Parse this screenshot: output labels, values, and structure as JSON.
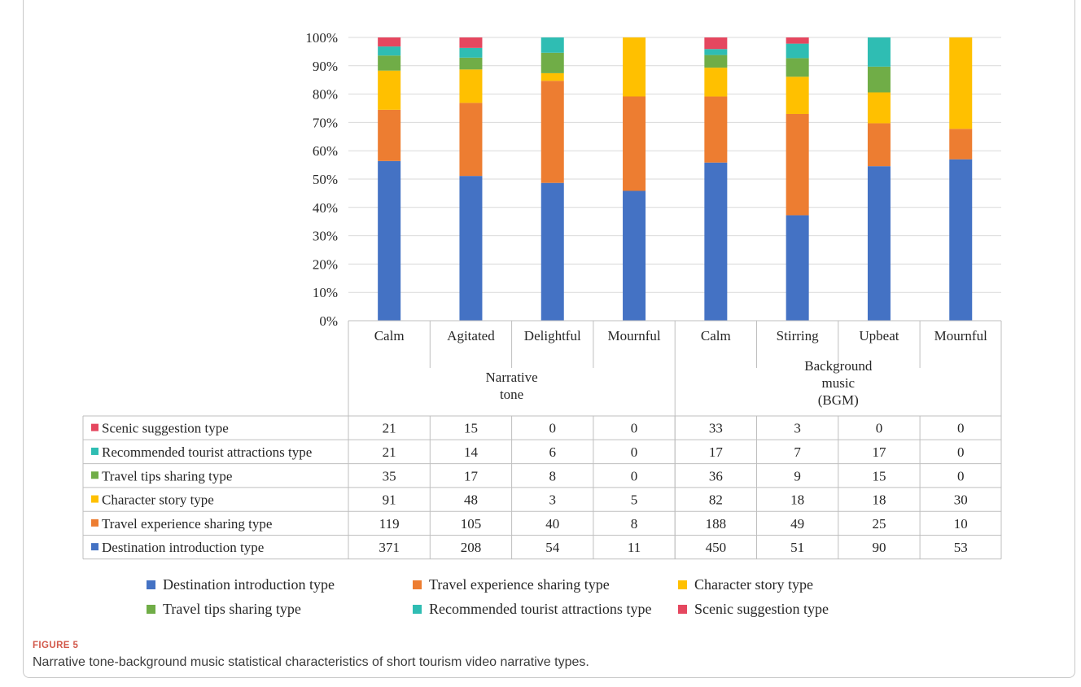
{
  "figure": {
    "label": "FIGURE 5",
    "caption": "Narrative tone-background music statistical characteristics of short tourism video narrative types."
  },
  "chart_data": {
    "type": "bar",
    "stacked": "percent",
    "ylim": [
      0,
      100
    ],
    "yticks": [
      "0%",
      "10%",
      "20%",
      "30%",
      "40%",
      "50%",
      "60%",
      "70%",
      "80%",
      "90%",
      "100%"
    ],
    "grid": true,
    "legend_position": "bottom",
    "categories": [
      "Calm",
      "Agitated",
      "Delightful",
      "Mournful",
      "Calm",
      "Stirring",
      "Upbeat",
      "Mournful"
    ],
    "groups": [
      {
        "label": "Narrative\ntone",
        "span": [
          0,
          3
        ]
      },
      {
        "label": "Background\nmusic\n(BGM)",
        "span": [
          4,
          7
        ]
      }
    ],
    "series": [
      {
        "name": "Destination introduction type",
        "color": "#4472c4",
        "values": [
          371,
          208,
          54,
          11,
          450,
          51,
          90,
          53
        ]
      },
      {
        "name": "Travel experience sharing type",
        "color": "#ed7d31",
        "values": [
          119,
          105,
          40,
          8,
          188,
          49,
          25,
          10
        ]
      },
      {
        "name": "Character story type",
        "color": "#ffc000",
        "values": [
          91,
          48,
          3,
          5,
          82,
          18,
          18,
          30
        ]
      },
      {
        "name": "Travel tips sharing type",
        "color": "#70ad47",
        "values": [
          35,
          17,
          8,
          0,
          36,
          9,
          15,
          0
        ]
      },
      {
        "name": "Recommended tourist attractions type",
        "color": "#2fbdb3",
        "values": [
          21,
          14,
          6,
          0,
          17,
          7,
          17,
          0
        ]
      },
      {
        "name": "Scenic suggestion type",
        "color": "#e5475f",
        "values": [
          21,
          15,
          0,
          0,
          33,
          3,
          0,
          0
        ]
      }
    ],
    "table_row_order": [
      "Scenic suggestion type",
      "Recommended tourist attractions type",
      "Travel tips sharing type",
      "Character story type",
      "Travel experience sharing type",
      "Destination introduction type"
    ],
    "legend_order": [
      "Destination introduction type",
      "Travel experience sharing type",
      "Character story type",
      "Travel tips sharing type",
      "Recommended tourist attractions type",
      "Scenic suggestion type"
    ]
  }
}
